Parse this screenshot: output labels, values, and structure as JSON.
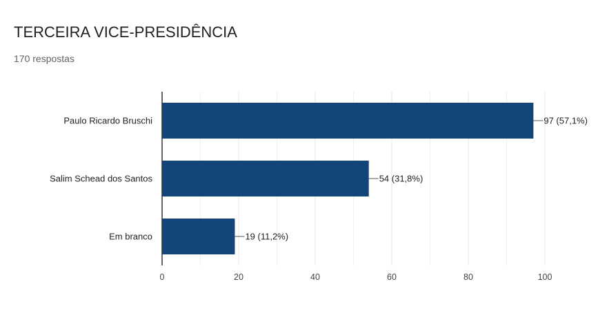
{
  "header": {
    "title": "TERCEIRA VICE-PRESIDÊNCIA",
    "subtitle": "170 respostas"
  },
  "chart_data": {
    "type": "bar",
    "orientation": "horizontal",
    "categories": [
      "Paulo Ricardo Bruschi",
      "Salim Schead dos Santos",
      "Em branco"
    ],
    "values": [
      97,
      54,
      19
    ],
    "data_labels": [
      "97 (57,1%)",
      "54 (31,8%)",
      "19 (11,2%)"
    ],
    "xlim": [
      0,
      100
    ],
    "x_ticks": [
      "0",
      "20",
      "40",
      "60",
      "80",
      "100"
    ],
    "grid": true,
    "colors": {
      "bar": "#13457a",
      "grid": "#e6e6e6",
      "axis": "#333333",
      "label": "#222222",
      "tick": "#444444"
    }
  }
}
